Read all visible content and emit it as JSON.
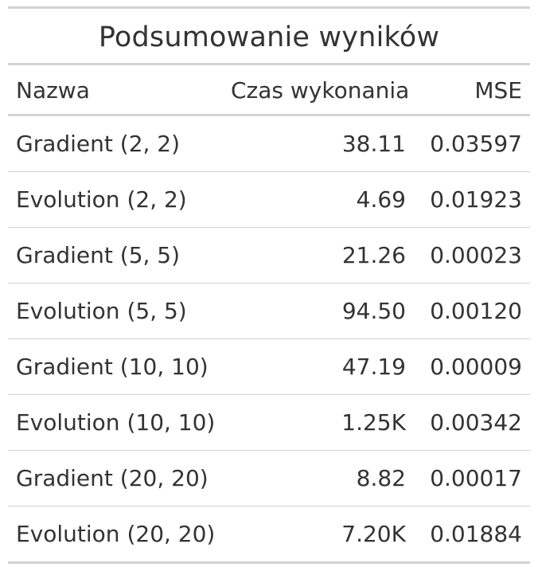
{
  "table": {
    "title": "Podsumowanie wyników",
    "columns": [
      "Nazwa",
      "Czas wykonania",
      "MSE"
    ],
    "rows": [
      [
        "Gradient (2, 2)",
        "38.11",
        "0.03597"
      ],
      [
        "Evolution (2, 2)",
        "4.69",
        "0.01923"
      ],
      [
        "Gradient (5, 5)",
        "21.26",
        "0.00023"
      ],
      [
        "Evolution (5, 5)",
        "94.50",
        "0.00120"
      ],
      [
        "Gradient (10, 10)",
        "47.19",
        "0.00009"
      ],
      [
        "Evolution (10, 10)",
        "1.25K",
        "0.00342"
      ],
      [
        "Gradient (20, 20)",
        "8.82",
        "0.00017"
      ],
      [
        "Evolution (20, 20)",
        "7.20K",
        "0.01884"
      ]
    ]
  }
}
